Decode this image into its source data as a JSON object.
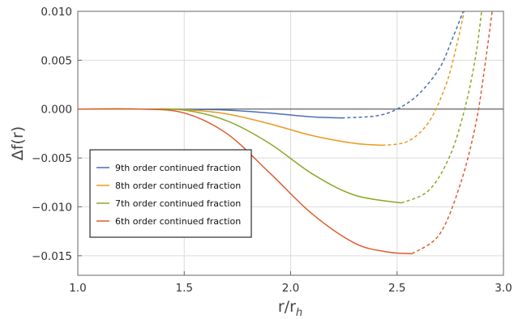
{
  "chart_data": {
    "type": "line",
    "xlabel": "r/r",
    "xlabel_subscript": "h",
    "ylabel": "Δf(r)",
    "xlim": [
      1.0,
      3.0
    ],
    "ylim": [
      -0.017,
      0.01
    ],
    "x_ticks": [
      "1.0",
      "1.5",
      "2.0",
      "2.5",
      "3.0"
    ],
    "y_ticks": [
      "0.010",
      "0.005",
      "0.000",
      "−0.005",
      "−0.010",
      "−0.015"
    ],
    "grid": true,
    "legend_position": "lower-left",
    "series": [
      {
        "name": "9th order continued fraction",
        "color": "#4a6fb0",
        "solid": [
          [
            1.0,
            0.0
          ],
          [
            1.3,
            0.0
          ],
          [
            1.5,
            -2e-05
          ],
          [
            1.7,
            -0.0001
          ],
          [
            1.9,
            -0.0004
          ],
          [
            2.1,
            -0.0008
          ],
          [
            2.24,
            -0.0009
          ]
        ],
        "dashed": [
          [
            2.24,
            -0.0009
          ],
          [
            2.4,
            -0.0007
          ],
          [
            2.5,
            0.0
          ],
          [
            2.6,
            0.0015
          ],
          [
            2.7,
            0.0042
          ],
          [
            2.76,
            0.0072
          ],
          [
            2.82,
            0.0105
          ]
        ]
      },
      {
        "name": "8th order continued fraction",
        "color": "#e89a21",
        "solid": [
          [
            1.0,
            0.0
          ],
          [
            1.3,
            0.0
          ],
          [
            1.5,
            -5e-05
          ],
          [
            1.7,
            -0.0005
          ],
          [
            1.9,
            -0.0015
          ],
          [
            2.1,
            -0.0027
          ],
          [
            2.3,
            -0.0035
          ],
          [
            2.43,
            -0.0037
          ]
        ],
        "dashed": [
          [
            2.43,
            -0.0037
          ],
          [
            2.55,
            -0.0033
          ],
          [
            2.65,
            -0.0013
          ],
          [
            2.73,
            0.0025
          ],
          [
            2.78,
            0.0065
          ],
          [
            2.82,
            0.0105
          ]
        ]
      },
      {
        "name": "7th order continued fraction",
        "color": "#8aa92a",
        "solid": [
          [
            1.0,
            0.0
          ],
          [
            1.3,
            0.0
          ],
          [
            1.5,
            -0.0001
          ],
          [
            1.7,
            -0.0012
          ],
          [
            1.9,
            -0.0035
          ],
          [
            2.1,
            -0.0066
          ],
          [
            2.3,
            -0.0088
          ],
          [
            2.52,
            -0.0096
          ]
        ],
        "dashed": [
          [
            2.52,
            -0.0096
          ],
          [
            2.65,
            -0.0083
          ],
          [
            2.75,
            -0.0047
          ],
          [
            2.82,
            0.0002
          ],
          [
            2.87,
            0.0055
          ],
          [
            2.9,
            0.0105
          ]
        ]
      },
      {
        "name": "6th order continued fraction",
        "color": "#e05a2e",
        "solid": [
          [
            1.0,
            0.0
          ],
          [
            1.3,
            0.0
          ],
          [
            1.5,
            -0.0004
          ],
          [
            1.7,
            -0.0025
          ],
          [
            1.9,
            -0.0065
          ],
          [
            2.1,
            -0.0107
          ],
          [
            2.3,
            -0.0137
          ],
          [
            2.45,
            -0.0146
          ],
          [
            2.57,
            -0.0148
          ]
        ],
        "dashed": [
          [
            2.57,
            -0.0148
          ],
          [
            2.7,
            -0.0128
          ],
          [
            2.8,
            -0.0075
          ],
          [
            2.87,
            -0.0015
          ],
          [
            2.91,
            0.004
          ],
          [
            2.95,
            0.0105
          ]
        ]
      }
    ]
  }
}
